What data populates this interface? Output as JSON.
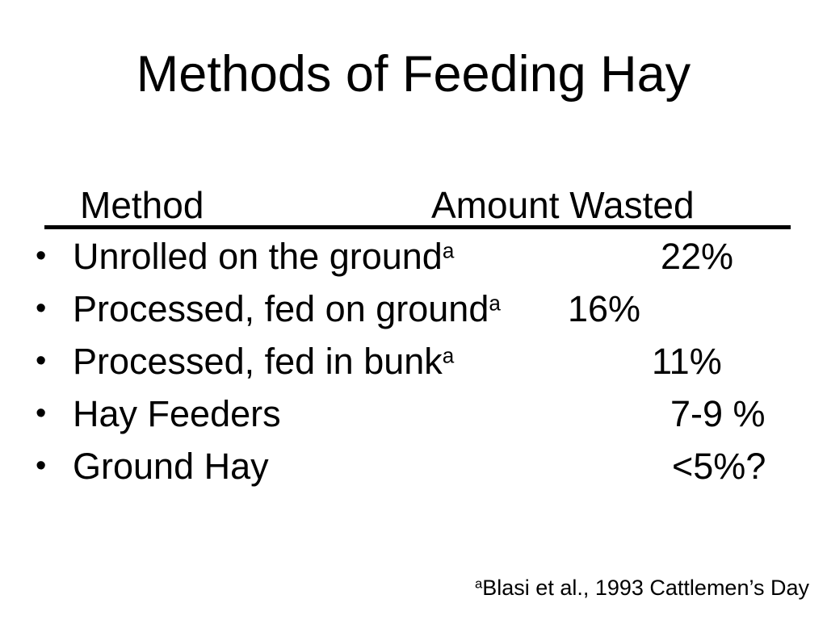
{
  "slide": {
    "title": "Methods of Feeding Hay",
    "bullet_glyph": "•",
    "table": {
      "col1_header": "Method",
      "col2_header": "Amount Wasted",
      "rows": [
        {
          "label": "Unrolled on the ground",
          "superscript": "a",
          "value": "22%"
        },
        {
          "label": "Processed, fed on ground",
          "superscript": "a",
          "value": "16%"
        },
        {
          "label": "Processed, fed in bunk",
          "superscript": "a",
          "value": "11%"
        },
        {
          "label": "Hay Feeders",
          "superscript": "",
          "value": "7-9 %"
        },
        {
          "label": "Ground Hay",
          "superscript": "",
          "value": "<5%?"
        }
      ]
    },
    "footnote": {
      "marker": "a",
      "text": "Blasi et al., 1993 Cattlemen’s Day"
    },
    "colors": {
      "background": "#ffffff",
      "text": "#000000",
      "divider": "#000000"
    }
  }
}
